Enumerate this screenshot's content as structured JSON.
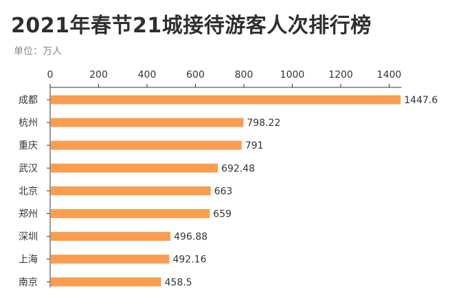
{
  "title": "2021年春节21城接待游客人次排行榜",
  "subtitle": "单位：万人",
  "colors": {
    "bar": "#fa9d4e",
    "axis": "#333333",
    "text": "#333333"
  },
  "chart_data": {
    "type": "bar",
    "orientation": "horizontal",
    "categories": [
      "成都",
      "杭州",
      "重庆",
      "武汉",
      "北京",
      "郑州",
      "深圳",
      "上海",
      "南京"
    ],
    "values": [
      1447.6,
      798.22,
      791,
      692.48,
      663,
      659,
      496.88,
      492.16,
      458.5
    ],
    "value_labels": [
      "1447.6",
      "798.22",
      "791",
      "692.48",
      "663",
      "659",
      "496.88",
      "492.16",
      "458.5"
    ],
    "xlim": [
      0,
      1400
    ],
    "ticks": [
      0,
      200,
      400,
      600,
      800,
      1000,
      1200,
      1400
    ],
    "tick_labels": [
      "0",
      "200",
      "400",
      "600",
      "800",
      "1000",
      "1200",
      "1400"
    ],
    "x_axis_position": "top",
    "grid": false,
    "title": "2021年春节21城接待游客人次排行榜",
    "unit": "单位：万人"
  }
}
